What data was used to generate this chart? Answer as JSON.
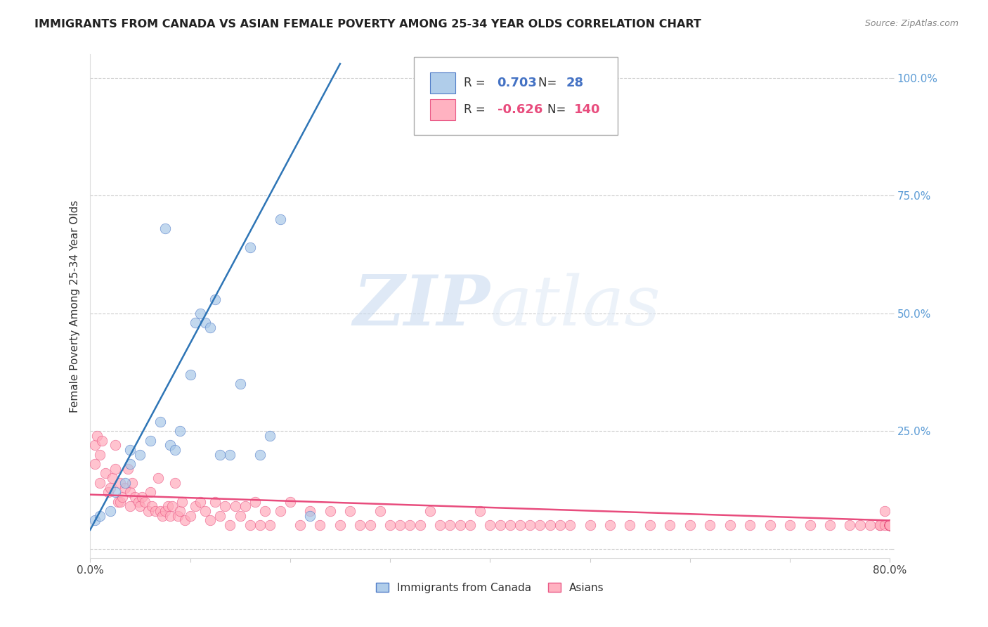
{
  "title": "IMMIGRANTS FROM CANADA VS ASIAN FEMALE POVERTY AMONG 25-34 YEAR OLDS CORRELATION CHART",
  "source": "Source: ZipAtlas.com",
  "ylabel": "Female Poverty Among 25-34 Year Olds",
  "xlim": [
    0.0,
    0.8
  ],
  "ylim": [
    -0.02,
    1.05
  ],
  "blue_color": "#a8c8e8",
  "pink_color": "#ffaabb",
  "blue_edge_color": "#4472c4",
  "pink_edge_color": "#e84c7d",
  "blue_line_color": "#2e75b6",
  "pink_line_color": "#e84c7d",
  "legend_R_blue": "0.703",
  "legend_N_blue": "28",
  "legend_R_pink": "-0.626",
  "legend_N_pink": "140",
  "watermark_zip": "ZIP",
  "watermark_atlas": "atlas",
  "blue_scatter_x": [
    0.005,
    0.01,
    0.02,
    0.025,
    0.035,
    0.04,
    0.04,
    0.05,
    0.06,
    0.07,
    0.075,
    0.08,
    0.085,
    0.09,
    0.1,
    0.105,
    0.11,
    0.115,
    0.12,
    0.125,
    0.13,
    0.14,
    0.15,
    0.16,
    0.17,
    0.18,
    0.19,
    0.22
  ],
  "blue_scatter_y": [
    0.06,
    0.07,
    0.08,
    0.12,
    0.14,
    0.18,
    0.21,
    0.2,
    0.23,
    0.27,
    0.68,
    0.22,
    0.21,
    0.25,
    0.37,
    0.48,
    0.5,
    0.48,
    0.47,
    0.53,
    0.2,
    0.2,
    0.35,
    0.64,
    0.2,
    0.24,
    0.7,
    0.07
  ],
  "blue_line_x0": 0.0,
  "blue_line_y0": 0.04,
  "blue_line_x1": 0.25,
  "blue_line_y1": 1.03,
  "pink_line_x0": 0.0,
  "pink_line_y0": 0.115,
  "pink_line_x1": 0.8,
  "pink_line_y1": 0.06,
  "pink_scatter_x": [
    0.005,
    0.005,
    0.007,
    0.01,
    0.01,
    0.012,
    0.015,
    0.018,
    0.02,
    0.022,
    0.025,
    0.025,
    0.028,
    0.03,
    0.03,
    0.032,
    0.035,
    0.038,
    0.04,
    0.04,
    0.042,
    0.045,
    0.048,
    0.05,
    0.052,
    0.055,
    0.058,
    0.06,
    0.062,
    0.065,
    0.068,
    0.07,
    0.072,
    0.075,
    0.078,
    0.08,
    0.082,
    0.085,
    0.088,
    0.09,
    0.092,
    0.095,
    0.1,
    0.105,
    0.11,
    0.115,
    0.12,
    0.125,
    0.13,
    0.135,
    0.14,
    0.145,
    0.15,
    0.155,
    0.16,
    0.165,
    0.17,
    0.175,
    0.18,
    0.19,
    0.2,
    0.21,
    0.22,
    0.23,
    0.24,
    0.25,
    0.26,
    0.27,
    0.28,
    0.29,
    0.3,
    0.31,
    0.32,
    0.33,
    0.34,
    0.35,
    0.36,
    0.37,
    0.38,
    0.39,
    0.4,
    0.41,
    0.42,
    0.43,
    0.44,
    0.45,
    0.46,
    0.47,
    0.48,
    0.5,
    0.52,
    0.54,
    0.56,
    0.58,
    0.6,
    0.62,
    0.64,
    0.66,
    0.68,
    0.7,
    0.72,
    0.74,
    0.76,
    0.77,
    0.78,
    0.79,
    0.79,
    0.795,
    0.795,
    0.8,
    0.8,
    0.8,
    0.8,
    0.8,
    0.8,
    0.8,
    0.8,
    0.8,
    0.8,
    0.8,
    0.8,
    0.8,
    0.8,
    0.8,
    0.8,
    0.8,
    0.8,
    0.8,
    0.8,
    0.8,
    0.8,
    0.8,
    0.8,
    0.8,
    0.8,
    0.8,
    0.8,
    0.8,
    0.8,
    0.8,
    0.8,
    0.8,
    0.8,
    0.8,
    0.8,
    0.8,
    0.8,
    0.8
  ],
  "pink_scatter_y": [
    0.22,
    0.18,
    0.24,
    0.14,
    0.2,
    0.23,
    0.16,
    0.12,
    0.13,
    0.15,
    0.17,
    0.22,
    0.1,
    0.1,
    0.14,
    0.11,
    0.13,
    0.17,
    0.09,
    0.12,
    0.14,
    0.11,
    0.1,
    0.09,
    0.11,
    0.1,
    0.08,
    0.12,
    0.09,
    0.08,
    0.15,
    0.08,
    0.07,
    0.08,
    0.09,
    0.07,
    0.09,
    0.14,
    0.07,
    0.08,
    0.1,
    0.06,
    0.07,
    0.09,
    0.1,
    0.08,
    0.06,
    0.1,
    0.07,
    0.09,
    0.05,
    0.09,
    0.07,
    0.09,
    0.05,
    0.1,
    0.05,
    0.08,
    0.05,
    0.08,
    0.1,
    0.05,
    0.08,
    0.05,
    0.08,
    0.05,
    0.08,
    0.05,
    0.05,
    0.08,
    0.05,
    0.05,
    0.05,
    0.05,
    0.08,
    0.05,
    0.05,
    0.05,
    0.05,
    0.08,
    0.05,
    0.05,
    0.05,
    0.05,
    0.05,
    0.05,
    0.05,
    0.05,
    0.05,
    0.05,
    0.05,
    0.05,
    0.05,
    0.05,
    0.05,
    0.05,
    0.05,
    0.05,
    0.05,
    0.05,
    0.05,
    0.05,
    0.05,
    0.05,
    0.05,
    0.05,
    0.05,
    0.08,
    0.05,
    0.05,
    0.05,
    0.05,
    0.05,
    0.05,
    0.05,
    0.05,
    0.05,
    0.05,
    0.05,
    0.05,
    0.05,
    0.05,
    0.05,
    0.05,
    0.05,
    0.05,
    0.05,
    0.05,
    0.05,
    0.05,
    0.05,
    0.05,
    0.05,
    0.05,
    0.05,
    0.05,
    0.05,
    0.05,
    0.05,
    0.05,
    0.05,
    0.05,
    0.05,
    0.05,
    0.05,
    0.05,
    0.05,
    0.05
  ]
}
